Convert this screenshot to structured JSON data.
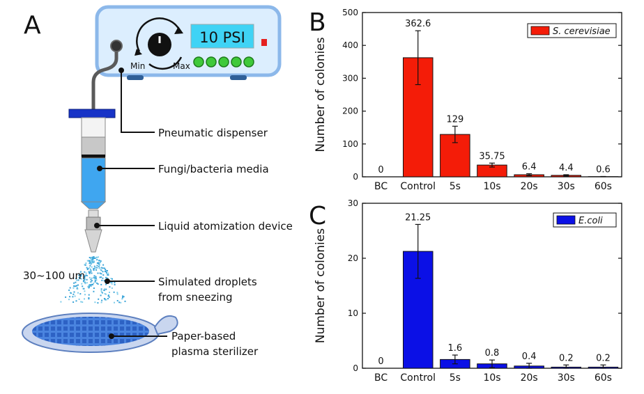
{
  "panels": {
    "a": "A",
    "b": "B",
    "c": "C"
  },
  "device": {
    "display": "10 PSI",
    "min_label": "Min",
    "max_label": "Max"
  },
  "annotations": {
    "dispenser": "Pneumatic dispenser",
    "media": "Fungi/bacteria media",
    "atomizer": "Liquid atomization device",
    "droplets_line1": "Simulated droplets",
    "droplets_line2": "from sneezing",
    "sterilizer_line1": "Paper-based",
    "sterilizer_line2": "plasma sterilizer",
    "droplet_size": "30~100 um"
  },
  "colors": {
    "red_bar": "#f41c08",
    "blue_bar": "#0b10e6",
    "device_body": "#dceefe",
    "device_border": "#8cb8ea",
    "display_bg": "#3fd3f5",
    "media_blue": "#3fa6f0",
    "button_green": "#3fc93a"
  },
  "chart_data": [
    {
      "type": "bar",
      "panel": "B",
      "categories": [
        "BC",
        "Control",
        "5s",
        "10s",
        "20s",
        "30s",
        "60s"
      ],
      "series": [
        {
          "name": "S. cerevisiae",
          "values": [
            0,
            362.6,
            129,
            35.75,
            6.4,
            4.4,
            0.6
          ],
          "errors": [
            0,
            82,
            25,
            6,
            3,
            2,
            0.5
          ],
          "labels": [
            "0",
            "362.6",
            "129",
            "35.75",
            "6.4",
            "4.4",
            "0.6"
          ]
        }
      ],
      "xlabel": "",
      "ylabel": "Number of colonies",
      "ylim": [
        0,
        500
      ],
      "yticks": [
        "0",
        "100",
        "200",
        "300",
        "400",
        "500"
      ],
      "legend": "top-right"
    },
    {
      "type": "bar",
      "panel": "C",
      "categories": [
        "BC",
        "Control",
        "5s",
        "10s",
        "20s",
        "30s",
        "60s"
      ],
      "series": [
        {
          "name": "E.coli",
          "values": [
            0,
            21.25,
            1.6,
            0.8,
            0.4,
            0.2,
            0.2
          ],
          "errors": [
            0,
            4.9,
            0.8,
            0.7,
            0.5,
            0.4,
            0.4
          ],
          "labels": [
            "0",
            "21.25",
            "1.6",
            "0.8",
            "0.4",
            "0.2",
            "0.2"
          ]
        }
      ],
      "xlabel": "",
      "ylabel": "Number of colonies",
      "ylim": [
        0,
        30
      ],
      "yticks": [
        "0",
        "10",
        "20",
        "30"
      ],
      "legend": "top-right"
    }
  ]
}
